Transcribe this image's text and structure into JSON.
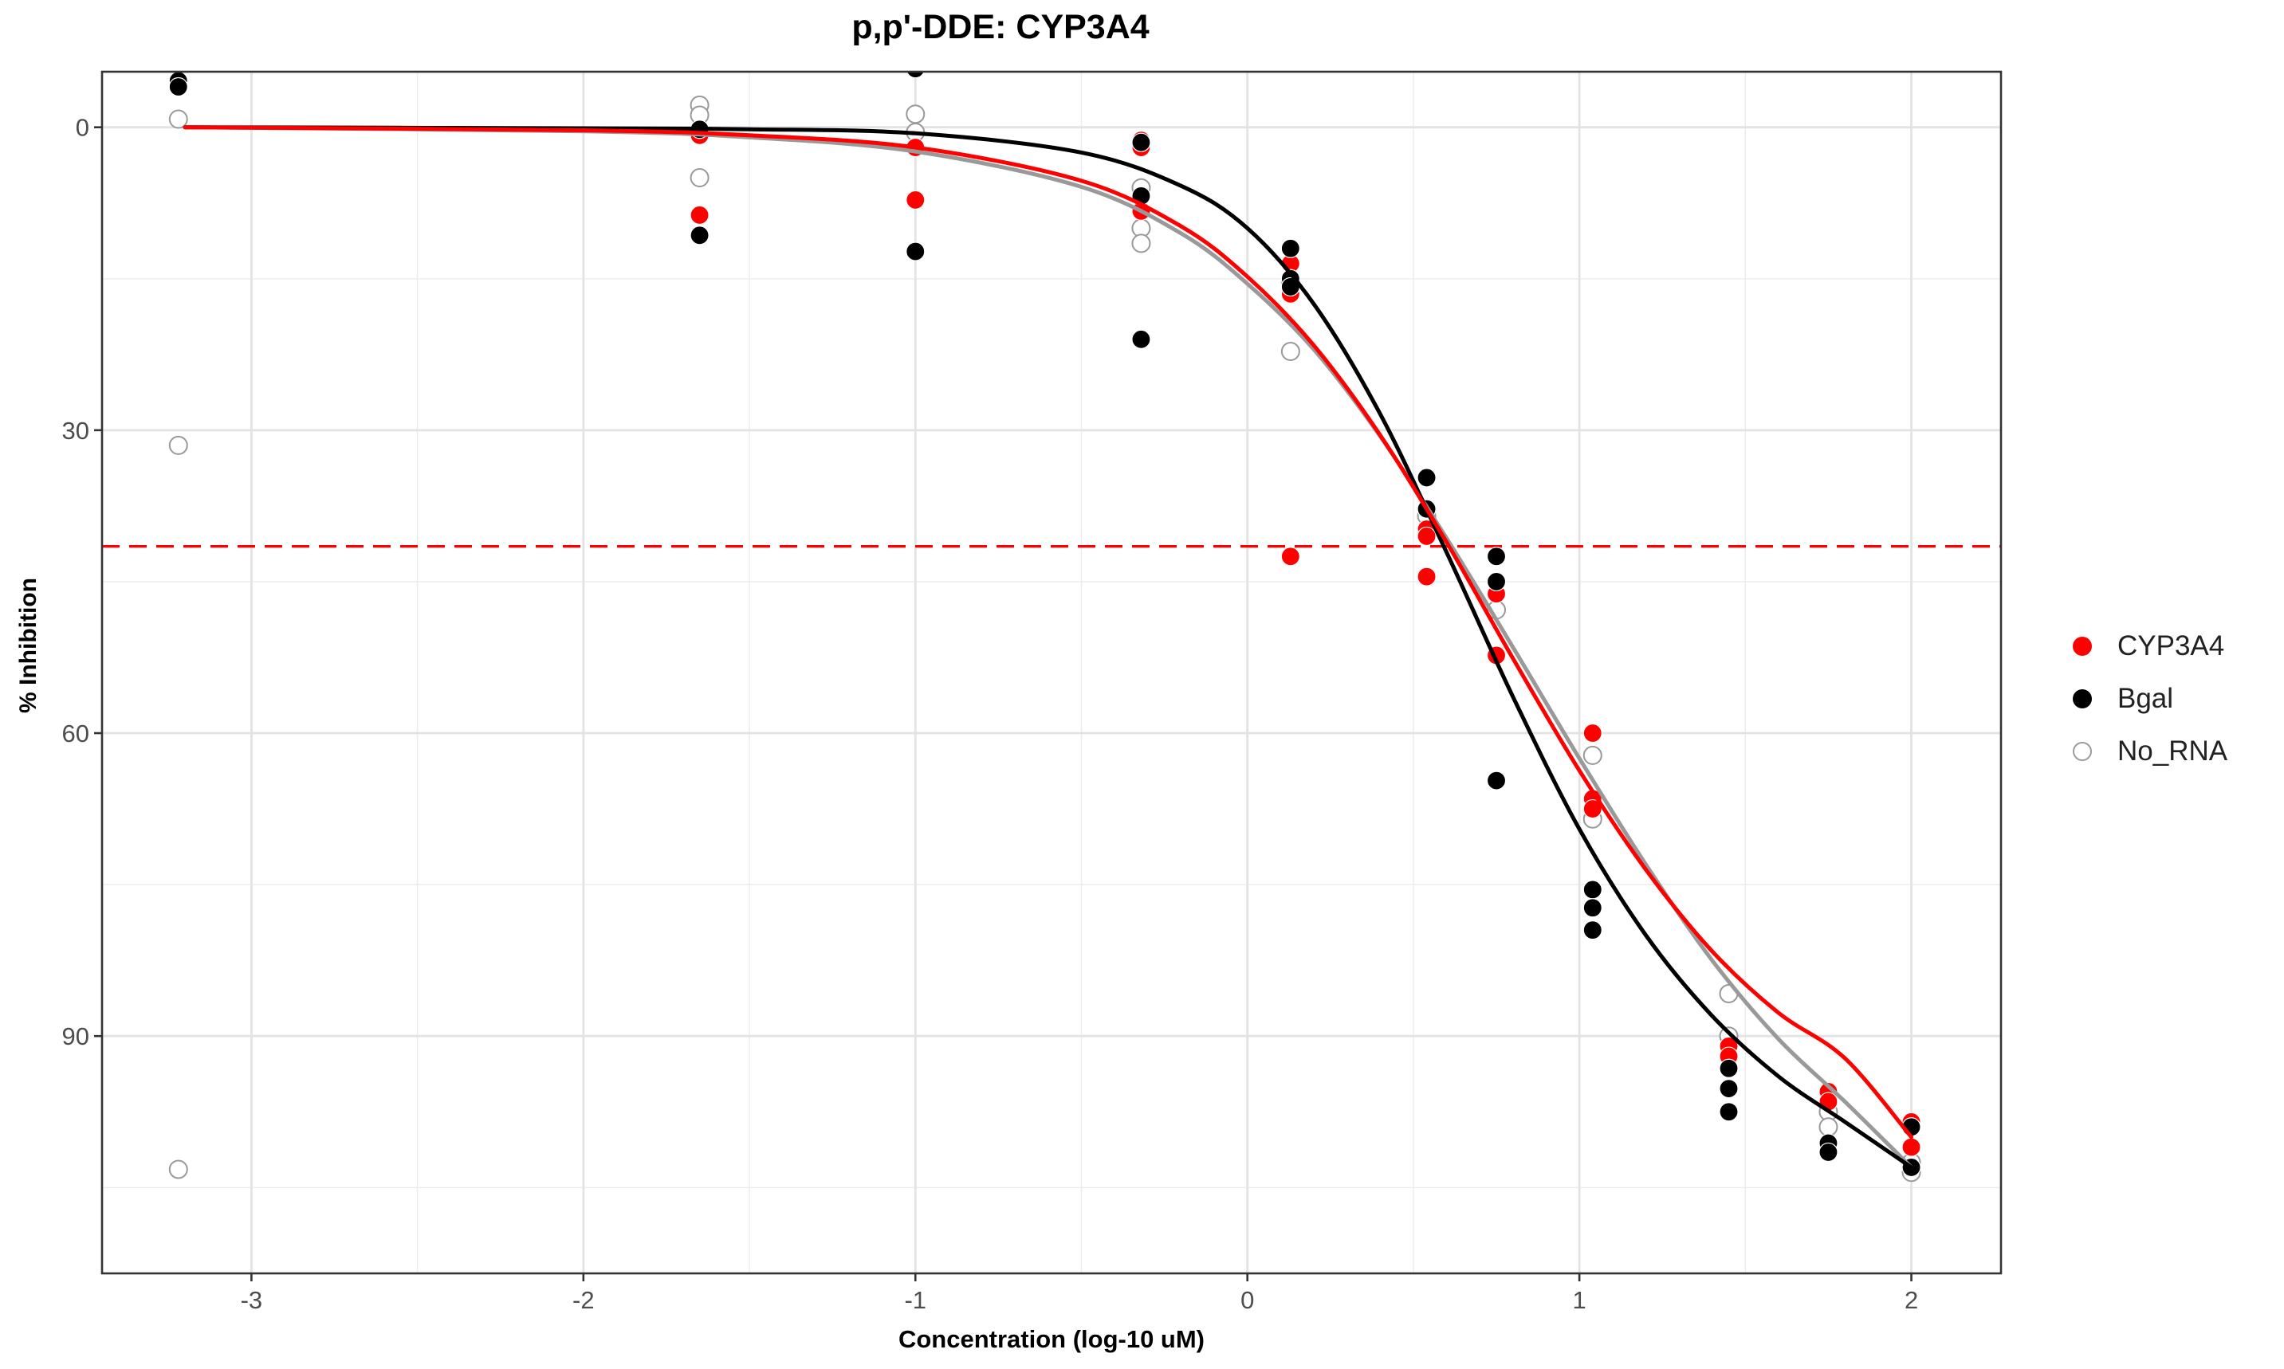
{
  "chart_data": {
    "type": "scatter",
    "title": "p,p'-DDE: CYP3A4",
    "xlabel": "Concentration (log-10 uM)",
    "ylabel": "% Inhibition",
    "xlim": [
      -3.45,
      2.27
    ],
    "ylim": [
      -5.5,
      113.5
    ],
    "y_reversed": true,
    "x_ticks": [
      -3,
      -2,
      -1,
      0,
      1,
      2
    ],
    "y_ticks": [
      0,
      30,
      60,
      90
    ],
    "x_tick_labels": [
      "-3",
      "-2",
      "-1",
      "0",
      "1",
      "2"
    ],
    "y_tick_labels": [
      "0",
      "30",
      "60",
      "90"
    ],
    "grid": true,
    "legend_position": "right",
    "reference_line": {
      "y": 41.5,
      "style": "dashed",
      "color": "#ff0000"
    },
    "series": [
      {
        "name": "CYP3A4",
        "color": "#ff0000",
        "marker": "filled",
        "points": [
          [
            -1.65,
            0.8
          ],
          [
            -1.65,
            8.7
          ],
          [
            -1.0,
            2.0
          ],
          [
            -1.0,
            7.2
          ],
          [
            -0.32,
            1.3
          ],
          [
            -0.32,
            2.0
          ],
          [
            -0.32,
            8.3
          ],
          [
            0.13,
            13.5
          ],
          [
            0.13,
            16.5
          ],
          [
            0.13,
            42.5
          ],
          [
            0.54,
            39.8
          ],
          [
            0.54,
            40.5
          ],
          [
            0.54,
            44.5
          ],
          [
            0.75,
            46.2
          ],
          [
            0.75,
            52.3
          ],
          [
            1.04,
            60.0
          ],
          [
            1.04,
            66.5
          ],
          [
            1.04,
            67.5
          ],
          [
            1.45,
            91.0
          ],
          [
            1.45,
            92.0
          ],
          [
            1.75,
            95.5
          ],
          [
            1.75,
            96.5
          ],
          [
            2.0,
            98.5
          ],
          [
            2.0,
            101.0
          ]
        ],
        "curve": [
          [
            -3.2,
            0.0
          ],
          [
            -2.0,
            0.3
          ],
          [
            -1.5,
            0.8
          ],
          [
            -1.0,
            2.0
          ],
          [
            -0.5,
            5.3
          ],
          [
            -0.2,
            9.8
          ],
          [
            0.0,
            14.8
          ],
          [
            0.2,
            21.6
          ],
          [
            0.4,
            30.5
          ],
          [
            0.6,
            41.1
          ],
          [
            0.8,
            52.6
          ],
          [
            1.0,
            63.7
          ],
          [
            1.2,
            73.5
          ],
          [
            1.4,
            81.6
          ],
          [
            1.6,
            87.7
          ],
          [
            1.8,
            92.2
          ],
          [
            2.0,
            100.0
          ]
        ]
      },
      {
        "name": "Bgal",
        "color": "#000000",
        "marker": "filled",
        "points": [
          [
            -3.22,
            -4.6
          ],
          [
            -3.22,
            -4.0
          ],
          [
            -1.65,
            0.2
          ],
          [
            -1.65,
            10.7
          ],
          [
            -1.0,
            -5.8
          ],
          [
            -1.0,
            12.3
          ],
          [
            -0.32,
            1.5
          ],
          [
            -0.32,
            6.8
          ],
          [
            -0.32,
            21.0
          ],
          [
            0.13,
            12.0
          ],
          [
            0.13,
            15.0
          ],
          [
            0.13,
            15.8
          ],
          [
            0.54,
            34.7
          ],
          [
            0.54,
            37.8
          ],
          [
            0.75,
            42.5
          ],
          [
            0.75,
            45.0
          ],
          [
            0.75,
            64.7
          ],
          [
            1.04,
            75.5
          ],
          [
            1.04,
            77.3
          ],
          [
            1.04,
            79.5
          ],
          [
            1.45,
            93.2
          ],
          [
            1.45,
            95.2
          ],
          [
            1.45,
            97.5
          ],
          [
            1.75,
            100.6
          ],
          [
            1.75,
            101.5
          ],
          [
            2.0,
            99.0
          ],
          [
            2.0,
            103.0
          ]
        ],
        "curve": [
          [
            -3.2,
            0.0
          ],
          [
            -2.0,
            0.1
          ],
          [
            -1.5,
            0.2
          ],
          [
            -1.0,
            0.6
          ],
          [
            -0.5,
            2.5
          ],
          [
            -0.2,
            5.8
          ],
          [
            0.0,
            10.0
          ],
          [
            0.2,
            17.5
          ],
          [
            0.4,
            28.4
          ],
          [
            0.6,
            42.1
          ],
          [
            0.8,
            56.4
          ],
          [
            1.0,
            69.5
          ],
          [
            1.2,
            80.0
          ],
          [
            1.4,
            88.0
          ],
          [
            1.6,
            94.0
          ],
          [
            1.8,
            98.5
          ],
          [
            2.0,
            103.0
          ]
        ]
      },
      {
        "name": "No_RNA",
        "color": "#999999",
        "marker": "hollow",
        "points": [
          [
            -3.22,
            -0.8
          ],
          [
            -3.22,
            31.5
          ],
          [
            -3.22,
            103.2
          ],
          [
            -1.65,
            -2.2
          ],
          [
            -1.65,
            -1.2
          ],
          [
            -1.65,
            5.0
          ],
          [
            -1.0,
            -1.3
          ],
          [
            -1.0,
            0.5
          ],
          [
            -0.32,
            6.0
          ],
          [
            -0.32,
            10.0
          ],
          [
            -0.32,
            11.5
          ],
          [
            0.13,
            15.3
          ],
          [
            0.13,
            22.2
          ],
          [
            0.54,
            38.5
          ],
          [
            0.54,
            40.0
          ],
          [
            0.75,
            47.8
          ],
          [
            1.04,
            62.2
          ],
          [
            1.04,
            68.5
          ],
          [
            1.45,
            85.8
          ],
          [
            1.45,
            90.0
          ],
          [
            1.75,
            97.5
          ],
          [
            1.75,
            99.0
          ],
          [
            2.0,
            102.5
          ],
          [
            2.0,
            103.5
          ]
        ],
        "curve": [
          [
            -3.2,
            0.0
          ],
          [
            -2.0,
            0.4
          ],
          [
            -1.5,
            1.0
          ],
          [
            -1.0,
            2.4
          ],
          [
            -0.5,
            5.9
          ],
          [
            -0.2,
            10.5
          ],
          [
            0.0,
            15.5
          ],
          [
            0.2,
            22.0
          ],
          [
            0.4,
            30.6
          ],
          [
            0.6,
            40.7
          ],
          [
            0.8,
            51.5
          ],
          [
            1.0,
            62.5
          ],
          [
            1.2,
            73.0
          ],
          [
            1.4,
            82.5
          ],
          [
            1.6,
            90.3
          ],
          [
            1.8,
            96.5
          ],
          [
            2.0,
            103.0
          ]
        ]
      }
    ]
  }
}
